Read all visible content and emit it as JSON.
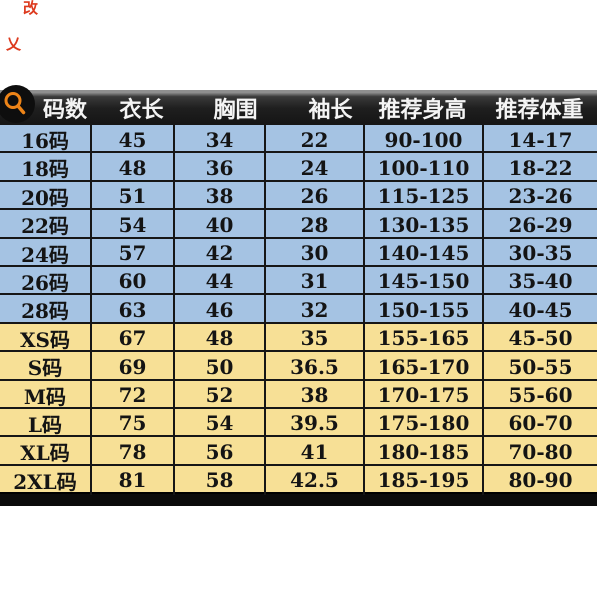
{
  "stray_marks": {
    "top": "改",
    "side": "乂",
    "color": "#dd3a1e"
  },
  "magnifier": {
    "icon": "magnifier-icon",
    "circle_color": "#0e0e0e",
    "glass_color": "#ed8418"
  },
  "table": {
    "headers": [
      "码数",
      "衣长",
      "胸围",
      "袖长",
      "推荐身高",
      "推荐体重"
    ],
    "rows": [
      {
        "size": "16码",
        "values": [
          "45",
          "34",
          "22",
          "90-100",
          "14-17"
        ],
        "tone": "blue"
      },
      {
        "size": "18码",
        "values": [
          "48",
          "36",
          "24",
          "100-110",
          "18-22"
        ],
        "tone": "blue"
      },
      {
        "size": "20码",
        "values": [
          "51",
          "38",
          "26",
          "115-125",
          "23-26"
        ],
        "tone": "blue"
      },
      {
        "size": "22码",
        "values": [
          "54",
          "40",
          "28",
          "130-135",
          "26-29"
        ],
        "tone": "blue"
      },
      {
        "size": "24码",
        "values": [
          "57",
          "42",
          "30",
          "140-145",
          "30-35"
        ],
        "tone": "blue"
      },
      {
        "size": "26码",
        "values": [
          "60",
          "44",
          "31",
          "145-150",
          "35-40"
        ],
        "tone": "blue"
      },
      {
        "size": "28码",
        "values": [
          "63",
          "46",
          "32",
          "150-155",
          "40-45"
        ],
        "tone": "blue"
      },
      {
        "size": "XS码",
        "values": [
          "67",
          "48",
          "35",
          "155-165",
          "45-50"
        ],
        "tone": "yellow"
      },
      {
        "size": "S码",
        "values": [
          "69",
          "50",
          "36.5",
          "165-170",
          "50-55"
        ],
        "tone": "yellow"
      },
      {
        "size": "M码",
        "values": [
          "72",
          "52",
          "38",
          "170-175",
          "55-60"
        ],
        "tone": "yellow"
      },
      {
        "size": "L码",
        "values": [
          "75",
          "54",
          "39.5",
          "175-180",
          "60-70"
        ],
        "tone": "yellow"
      },
      {
        "size": "XL码",
        "values": [
          "78",
          "56",
          "41",
          "180-185",
          "70-80"
        ],
        "tone": "yellow"
      },
      {
        "size": "2XL码",
        "values": [
          "81",
          "58",
          "42.5",
          "185-195",
          "80-90"
        ],
        "tone": "yellow"
      }
    ]
  },
  "colors": {
    "blue_row": "#a5c3e3",
    "yellow_row": "#f7e096",
    "grid_line": "#161616",
    "header_bg": "#1f1f1f",
    "header_text": "#f4f4f4",
    "bottom_bar": "#0b0b0b",
    "magnifier_orange": "#ed8418",
    "watermark_red": "#dd3a1e"
  }
}
